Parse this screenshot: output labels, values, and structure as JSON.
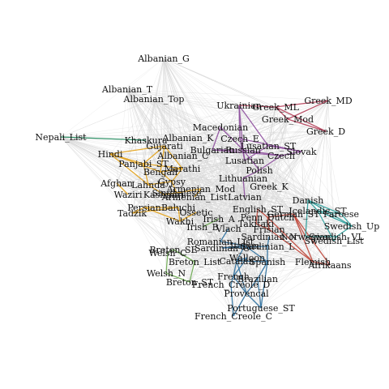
{
  "graph": {
    "background_edge_color": "#d6d6d6",
    "cluster_colors": {
      "indic": "#e3a21a",
      "slavic": "#8e4f9e",
      "romance": "#2b6f9e",
      "germanic": "#c0473a",
      "north_germanic": "#2a9d9a",
      "celtic": "#6aa84f",
      "greek": "#b5405a",
      "nepali": "#1f8a5c",
      "albanian": "#9a9a9a"
    },
    "nodes": [
      {
        "id": "Albanian_G",
        "group": "albanian"
      },
      {
        "id": "Albanian_T",
        "group": "albanian"
      },
      {
        "id": "Albanian_Top",
        "group": "albanian"
      },
      {
        "id": "Albanian_K",
        "group": "albanian"
      },
      {
        "id": "Albanian_C",
        "group": "albanian"
      },
      {
        "id": "Ukrainian",
        "group": "slavic"
      },
      {
        "id": "Greek_ML",
        "group": "greek"
      },
      {
        "id": "Greek_MD",
        "group": "greek"
      },
      {
        "id": "Greek_Mod",
        "group": "greek"
      },
      {
        "id": "Greek_D",
        "group": "greek"
      },
      {
        "id": "Greek_K",
        "group": "greek"
      },
      {
        "id": "Nepali_List",
        "group": "nepali"
      },
      {
        "id": "Khaskura",
        "group": "nepali"
      },
      {
        "id": "Macedonian",
        "group": "slavic"
      },
      {
        "id": "Czech_E",
        "group": "slavic"
      },
      {
        "id": "Gujarati",
        "group": "indic"
      },
      {
        "id": "Hindi",
        "group": "indic"
      },
      {
        "id": "Bulgarian",
        "group": "slavic"
      },
      {
        "id": "Russian",
        "group": "slavic"
      },
      {
        "id": "Slovak",
        "group": "slavic"
      },
      {
        "id": "Lusatian_ST",
        "group": "slavic"
      },
      {
        "id": "Lusatian",
        "group": "slavic"
      },
      {
        "id": "Czech",
        "group": "slavic"
      },
      {
        "id": "Panjabi_ST",
        "group": "indic"
      },
      {
        "id": "Bengali",
        "group": "indic"
      },
      {
        "id": "Marathi",
        "group": "indic"
      },
      {
        "id": "Lahnda",
        "group": "indic"
      },
      {
        "id": "Afghan",
        "group": "indic"
      },
      {
        "id": "Waziri",
        "group": "indic"
      },
      {
        "id": "Kashmiri",
        "group": "indic"
      },
      {
        "id": "Gypsy",
        "group": "indic"
      },
      {
        "id": "Singhalese",
        "group": "indic"
      },
      {
        "id": "Armenian_Mod",
        "group": "indic"
      },
      {
        "id": "Armenian_List",
        "group": "indic"
      },
      {
        "id": "Persian",
        "group": "indic"
      },
      {
        "id": "Baluchi",
        "group": "indic"
      },
      {
        "id": "Tadzik",
        "group": "indic"
      },
      {
        "id": "Ossetic",
        "group": "indic"
      },
      {
        "id": "Wakhi",
        "group": "indic"
      },
      {
        "id": "Latvian",
        "group": "slavic"
      },
      {
        "id": "Lithuanian",
        "group": "slavic"
      },
      {
        "id": "Polish",
        "group": "slavic"
      },
      {
        "id": "Irish_A",
        "group": "celtic"
      },
      {
        "id": "Irish_B",
        "group": "celtic"
      },
      {
        "id": "Vlach",
        "group": "romance"
      },
      {
        "id": "Takitaki",
        "group": "germanic"
      },
      {
        "id": "Frisian",
        "group": "germanic"
      },
      {
        "id": "Penn_Dutch",
        "group": "germanic"
      },
      {
        "id": "English_ST",
        "group": "germanic"
      },
      {
        "id": "Danish",
        "group": "north_germanic"
      },
      {
        "id": "Faroese",
        "group": "north_germanic"
      },
      {
        "id": "Icelandic_ST",
        "group": "north_germanic"
      },
      {
        "id": "Swedish_Up",
        "group": "north_germanic"
      },
      {
        "id": "Swedish_VL",
        "group": "north_germanic"
      },
      {
        "id": "Swedish_List",
        "group": "north_germanic"
      },
      {
        "id": "Norwegian",
        "group": "north_germanic"
      },
      {
        "id": "German_ST",
        "group": "germanic"
      },
      {
        "id": "Flemish",
        "group": "germanic"
      },
      {
        "id": "Afrikaans",
        "group": "germanic"
      },
      {
        "id": "Sardinian_N",
        "group": "romance"
      },
      {
        "id": "Sardinian_L",
        "group": "romance"
      },
      {
        "id": "Sardinian_C",
        "group": "romance"
      },
      {
        "id": "Romanian_List",
        "group": "romance"
      },
      {
        "id": "Breton_SE",
        "group": "celtic"
      },
      {
        "id": "Breton_List",
        "group": "celtic"
      },
      {
        "id": "Breton_ST",
        "group": "celtic"
      },
      {
        "id": "Welsh_C",
        "group": "celtic"
      },
      {
        "id": "Welsh_N",
        "group": "celtic"
      },
      {
        "id": "Catalan",
        "group": "romance"
      },
      {
        "id": "Walloon",
        "group": "romance"
      },
      {
        "id": "Spanish",
        "group": "romance"
      },
      {
        "id": "Italian",
        "group": "romance"
      },
      {
        "id": "French",
        "group": "romance"
      },
      {
        "id": "Brazilian",
        "group": "romance"
      },
      {
        "id": "French_Creole_D",
        "group": "romance"
      },
      {
        "id": "Provencal",
        "group": "romance"
      },
      {
        "id": "Portuguese_ST",
        "group": "romance"
      },
      {
        "id": "French_Creole_C",
        "group": "romance"
      }
    ]
  }
}
